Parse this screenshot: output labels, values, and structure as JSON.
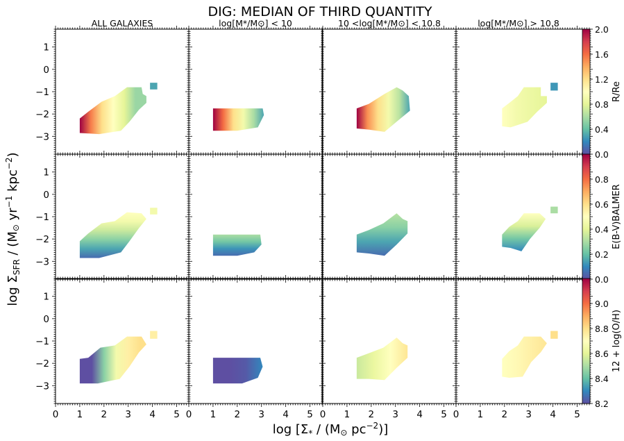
{
  "figure": {
    "title": "DIG: MEDIAN OF THIRD QUANTITY",
    "xlabel_prefix": "log [Σ",
    "xlabel_sub": "*",
    "xlabel_mid": " / (M",
    "xlabel_sun": "⊙",
    "xlabel_unit": " pc",
    "xlabel_exp": "−2",
    "xlabel_end": ")]",
    "ylabel_prefix": "log Σ",
    "ylabel_sub": "SFR",
    "ylabel_mid": " / (M",
    "ylabel_sun": "⊙",
    "ylabel_unit1": " yr",
    "ylabel_exp1": "−1",
    "ylabel_unit2": " kpc",
    "ylabel_exp2": "−2",
    "ylabel_end": ")"
  },
  "column_titles": [
    "ALL GALAXIES",
    "log[M*/M⊙] < 10",
    "10 <log[M*/M⊙] < 10.8",
    "log[M*/M⊙] > 10.8"
  ],
  "colors": {
    "colormap_spectral": [
      "#5e4fa2",
      "#3288bd",
      "#66c2a5",
      "#abdda4",
      "#e6f598",
      "#ffffbf",
      "#fee08b",
      "#fdae61",
      "#f46d43",
      "#d53e4f",
      "#9e0142"
    ]
  },
  "chart_data": [
    {
      "type": "heatmap",
      "title": "Median of third quantity: R/Re",
      "xlabel": "log [Σ* / (M⊙ pc−2)]",
      "ylabel": "log ΣSFR / (M⊙ yr−1 kpc−2)",
      "xlim": [
        0,
        5.5
      ],
      "ylim": [
        -3.8,
        1.8
      ],
      "xticks": [
        0,
        1,
        2,
        3,
        4,
        5
      ],
      "yticks": [
        1,
        0,
        -1,
        -2,
        -3
      ],
      "colorbar": {
        "label": "R/Re",
        "vmin": 0.0,
        "vmax": 2.0,
        "ticks": [
          "2.0",
          "1.6",
          "1.2",
          "0.8",
          "0.4",
          "0.0"
        ]
      },
      "panels": [
        {
          "column": "ALL GALAXIES",
          "region": [
            [
              1.0,
              -2.85
            ],
            [
              1.0,
              -2.2
            ],
            [
              1.35,
              -1.9
            ],
            [
              1.9,
              -1.45
            ],
            [
              2.45,
              -1.2
            ],
            [
              2.95,
              -0.8
            ],
            [
              3.55,
              -0.8
            ],
            [
              3.6,
              -1.1
            ],
            [
              3.75,
              -1.2
            ],
            [
              3.75,
              -1.5
            ],
            [
              3.45,
              -1.8
            ],
            [
              3.05,
              -2.35
            ],
            [
              2.7,
              -2.75
            ],
            [
              1.8,
              -2.9
            ]
          ],
          "extra": [
            [
              3.9,
              -0.6
            ],
            [
              4.2,
              -0.6
            ],
            [
              4.2,
              -0.9
            ],
            [
              3.9,
              -0.9
            ]
          ],
          "extra_value": 0.3,
          "gradient_x": [
            1.0,
            3.3
          ],
          "stops": [
            2.0,
            1.55,
            1.2,
            1.0,
            0.8,
            0.55
          ]
        },
        {
          "column": "log[M*/M⊙] < 10",
          "region": [
            [
              1.0,
              -2.75
            ],
            [
              1.0,
              -1.75
            ],
            [
              3.05,
              -1.75
            ],
            [
              3.1,
              -2.05
            ],
            [
              2.85,
              -2.6
            ],
            [
              2.0,
              -2.75
            ]
          ],
          "gradient_x": [
            1.0,
            3.1
          ],
          "stops": [
            2.0,
            1.6,
            1.2,
            0.9,
            0.6,
            0.3
          ]
        },
        {
          "column": "10 <log[M*/M⊙] < 10.8",
          "region": [
            [
              1.4,
              -2.65
            ],
            [
              1.4,
              -1.75
            ],
            [
              1.9,
              -1.55
            ],
            [
              2.55,
              -1.1
            ],
            [
              3.05,
              -0.8
            ],
            [
              3.3,
              -0.95
            ],
            [
              3.55,
              -1.2
            ],
            [
              3.6,
              -1.85
            ],
            [
              3.1,
              -2.3
            ],
            [
              2.55,
              -2.8
            ],
            [
              1.9,
              -2.7
            ]
          ],
          "gradient_x": [
            1.4,
            3.6
          ],
          "stops": [
            2.0,
            1.5,
            1.2,
            0.9,
            0.65,
            0.3
          ]
        },
        {
          "column": "log[M*/M⊙] > 10.8",
          "region": [
            [
              1.9,
              -2.55
            ],
            [
              1.9,
              -1.75
            ],
            [
              2.2,
              -1.5
            ],
            [
              2.55,
              -1.2
            ],
            [
              2.8,
              -0.8
            ],
            [
              3.5,
              -0.8
            ],
            [
              3.5,
              -1.2
            ],
            [
              3.75,
              -1.2
            ],
            [
              3.75,
              -1.5
            ],
            [
              3.35,
              -1.9
            ],
            [
              2.95,
              -2.35
            ],
            [
              2.25,
              -2.6
            ]
          ],
          "extra": [
            [
              3.9,
              -0.6
            ],
            [
              4.2,
              -0.6
            ],
            [
              4.2,
              -0.95
            ],
            [
              3.9,
              -0.95
            ]
          ],
          "extra_value": 0.25,
          "gradient_x": [
            1.9,
            3.75
          ],
          "stops": [
            1.0,
            0.9,
            0.85,
            0.8
          ]
        }
      ]
    },
    {
      "type": "heatmap",
      "title": "Median of third quantity: E(B-V) Balmer",
      "xlim": [
        0,
        5.5
      ],
      "ylim": [
        -3.8,
        1.8
      ],
      "colorbar": {
        "label": "E(B-V)BALMER",
        "vmin": 0.0,
        "vmax": 1.0,
        "ticks": [
          "0.8",
          "0.6",
          "0.4",
          "0.2",
          "0.0"
        ]
      },
      "panels": [
        {
          "column": "ALL GALAXIES",
          "region": [
            [
              1.0,
              -2.85
            ],
            [
              1.0,
              -2.1
            ],
            [
              1.35,
              -1.75
            ],
            [
              1.9,
              -1.3
            ],
            [
              2.45,
              -1.2
            ],
            [
              2.95,
              -0.8
            ],
            [
              3.55,
              -0.85
            ],
            [
              3.75,
              -1.1
            ],
            [
              3.45,
              -1.5
            ],
            [
              3.05,
              -2.1
            ],
            [
              2.7,
              -2.6
            ],
            [
              1.8,
              -2.85
            ]
          ],
          "extra": [
            [
              3.9,
              -0.6
            ],
            [
              4.2,
              -0.6
            ],
            [
              4.2,
              -0.9
            ],
            [
              3.9,
              -0.9
            ]
          ],
          "extra_value": 0.45,
          "gradient_y": [
            -2.85,
            -0.8
          ],
          "stops": [
            0.05,
            0.15,
            0.25,
            0.35,
            0.45,
            0.5
          ]
        },
        {
          "column": "log[M*/M⊙] < 10",
          "region": [
            [
              1.0,
              -2.75
            ],
            [
              1.0,
              -1.8
            ],
            [
              2.95,
              -1.8
            ],
            [
              3.0,
              -2.25
            ],
            [
              2.7,
              -2.6
            ],
            [
              2.0,
              -2.75
            ]
          ],
          "gradient_y": [
            -2.75,
            -1.8
          ],
          "stops": [
            0.05,
            0.12,
            0.22,
            0.3
          ]
        },
        {
          "column": "10 <log[M*/M⊙] < 10.8",
          "region": [
            [
              1.4,
              -2.6
            ],
            [
              1.4,
              -1.8
            ],
            [
              1.9,
              -1.6
            ],
            [
              2.5,
              -1.3
            ],
            [
              3.05,
              -0.85
            ],
            [
              3.3,
              -1.1
            ],
            [
              3.5,
              -1.2
            ],
            [
              3.5,
              -1.75
            ],
            [
              3.05,
              -2.25
            ],
            [
              2.55,
              -2.75
            ],
            [
              1.9,
              -2.65
            ]
          ],
          "gradient_y": [
            -2.75,
            -0.85
          ],
          "stops": [
            0.05,
            0.15,
            0.25,
            0.32
          ]
        },
        {
          "column": "log[M*/M⊙] > 10.8",
          "region": [
            [
              1.9,
              -2.35
            ],
            [
              1.9,
              -1.8
            ],
            [
              2.2,
              -1.45
            ],
            [
              2.55,
              -1.2
            ],
            [
              2.8,
              -0.85
            ],
            [
              3.45,
              -0.85
            ],
            [
              3.7,
              -1.1
            ],
            [
              3.45,
              -1.5
            ],
            [
              3.05,
              -2.0
            ],
            [
              2.7,
              -2.55
            ],
            [
              2.25,
              -2.4
            ]
          ],
          "extra": [
            [
              3.9,
              -0.55
            ],
            [
              4.2,
              -0.55
            ],
            [
              4.2,
              -0.85
            ],
            [
              3.9,
              -0.85
            ]
          ],
          "extra_value": 0.3,
          "gradient_y": [
            -2.55,
            -0.85
          ],
          "stops": [
            0.1,
            0.22,
            0.38,
            0.5
          ]
        }
      ]
    },
    {
      "type": "heatmap",
      "title": "Median of third quantity: 12 + log(O/H)",
      "xlim": [
        0,
        5.5
      ],
      "ylim": [
        -3.8,
        1.8
      ],
      "colorbar": {
        "label": "12 + log(O/H)",
        "vmin": 8.2,
        "vmax": 9.2,
        "ticks": [
          "9.0",
          "8.8",
          "8.6",
          "8.4",
          "8.2"
        ]
      },
      "panels": [
        {
          "column": "ALL GALAXIES",
          "region": [
            [
              1.0,
              -2.9
            ],
            [
              1.0,
              -1.8
            ],
            [
              1.35,
              -1.75
            ],
            [
              1.85,
              -1.3
            ],
            [
              2.45,
              -1.2
            ],
            [
              2.95,
              -0.8
            ],
            [
              3.55,
              -0.8
            ],
            [
              3.75,
              -1.15
            ],
            [
              3.45,
              -1.5
            ],
            [
              3.05,
              -2.15
            ],
            [
              2.65,
              -2.7
            ],
            [
              1.75,
              -2.9
            ]
          ],
          "extra": [
            [
              3.9,
              -0.55
            ],
            [
              4.2,
              -0.55
            ],
            [
              4.2,
              -0.9
            ],
            [
              3.9,
              -0.9
            ]
          ],
          "extra_value": 8.75,
          "gradient_x": [
            1.0,
            3.5
          ],
          "stops": [
            8.2,
            8.2,
            8.45,
            8.65,
            8.75,
            8.8
          ]
        },
        {
          "column": "log[M*/M⊙] < 10",
          "region": [
            [
              1.0,
              -2.9
            ],
            [
              1.0,
              -1.75
            ],
            [
              2.95,
              -1.75
            ],
            [
              3.05,
              -2.15
            ],
            [
              2.85,
              -2.65
            ],
            [
              2.2,
              -2.9
            ]
          ],
          "gradient_x": [
            1.0,
            3.05
          ],
          "stops": [
            8.2,
            8.2,
            8.22,
            8.3
          ]
        },
        {
          "column": "10 <log[M*/M⊙] < 10.8",
          "region": [
            [
              1.4,
              -2.7
            ],
            [
              1.4,
              -1.75
            ],
            [
              1.9,
              -1.55
            ],
            [
              2.5,
              -1.3
            ],
            [
              3.05,
              -0.85
            ],
            [
              3.3,
              -1.1
            ],
            [
              3.5,
              -1.2
            ],
            [
              3.5,
              -1.75
            ],
            [
              3.05,
              -2.2
            ],
            [
              2.55,
              -2.75
            ],
            [
              1.9,
              -2.7
            ]
          ],
          "gradient_x": [
            1.4,
            3.5
          ],
          "stops": [
            8.55,
            8.62,
            8.7,
            8.78
          ]
        },
        {
          "column": "log[M*/M⊙] > 10.8",
          "region": [
            [
              1.9,
              -2.6
            ],
            [
              1.9,
              -1.8
            ],
            [
              2.2,
              -1.45
            ],
            [
              2.55,
              -1.2
            ],
            [
              2.8,
              -0.8
            ],
            [
              3.5,
              -0.8
            ],
            [
              3.75,
              -1.1
            ],
            [
              3.5,
              -1.5
            ],
            [
              3.1,
              -1.95
            ],
            [
              2.75,
              -2.6
            ],
            [
              2.2,
              -2.65
            ]
          ],
          "extra": [
            [
              3.9,
              -0.55
            ],
            [
              4.2,
              -0.55
            ],
            [
              4.2,
              -0.9
            ],
            [
              3.9,
              -0.9
            ]
          ],
          "extra_value": 8.8,
          "gradient_x": [
            1.9,
            3.75
          ],
          "stops": [
            8.7,
            8.72,
            8.75,
            8.78
          ]
        }
      ]
    }
  ]
}
